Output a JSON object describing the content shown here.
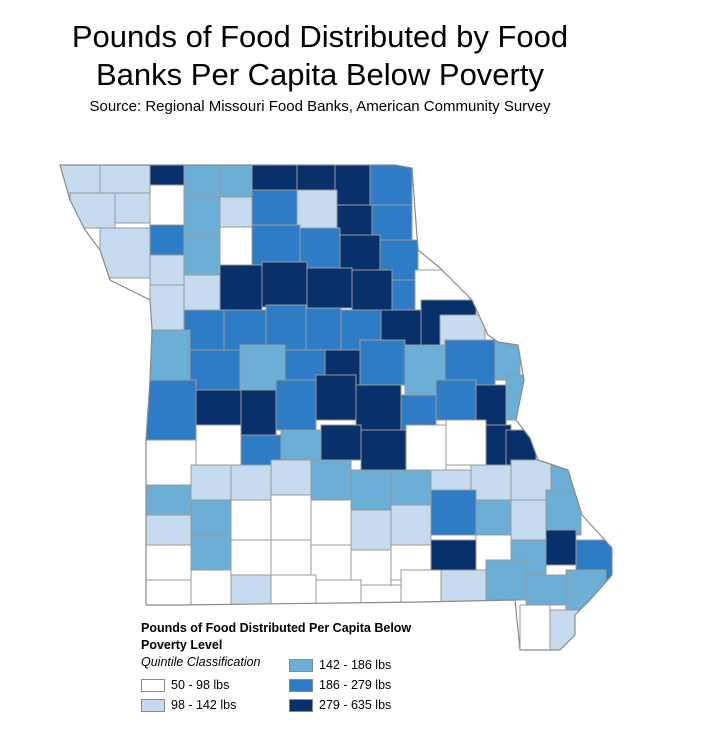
{
  "title_line1": "Pounds of Food Distributed by Food",
  "title_line2": "Banks Per Capita Below Poverty",
  "source": "Source: Regional Missouri Food Banks, American Community Survey",
  "legend": {
    "title_line1": "Pounds of Food Distributed Per Capita Below",
    "title_line2": "Poverty Level",
    "subtitle": "Quintile Classification",
    "classes": [
      {
        "label": "50 - 98 lbs",
        "color": "#ffffff"
      },
      {
        "label": "98 - 142 lbs",
        "color": "#c6dbef"
      },
      {
        "label": "142 - 186 lbs",
        "color": "#6baed6"
      },
      {
        "label": "186 - 279 lbs",
        "color": "#2f7cc6"
      },
      {
        "label": "279 - 635 lbs",
        "color": "#08306b"
      }
    ]
  },
  "map": {
    "region": "Missouri counties",
    "stroke_color": "#9a9a9a"
  }
}
